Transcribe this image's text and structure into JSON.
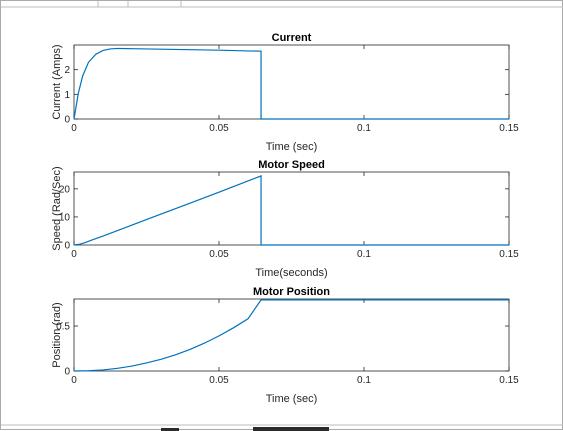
{
  "chart_data": [
    {
      "type": "line",
      "title": "Current",
      "xlabel": "Time (sec)",
      "ylabel": "Current (Amps)",
      "xlim": [
        0,
        0.15
      ],
      "ylim": [
        0,
        3
      ],
      "xticks": [
        0,
        0.05,
        0.1,
        0.15
      ],
      "xtick_labels": [
        "0",
        "0.05",
        "0.1",
        "0.15"
      ],
      "yticks": [
        0,
        1,
        2
      ],
      "ytick_labels": [
        "0",
        "1",
        "2"
      ],
      "grid": false,
      "series": [
        {
          "color": "#0072bd",
          "x": [
            0,
            0.0015,
            0.003,
            0.005,
            0.0075,
            0.01,
            0.0125,
            0.015,
            0.02,
            0.03,
            0.04,
            0.05,
            0.06,
            0.0645,
            0.0645,
            0.08,
            0.1,
            0.12,
            0.15
          ],
          "y": [
            0,
            1.05,
            1.75,
            2.3,
            2.62,
            2.78,
            2.84,
            2.86,
            2.85,
            2.83,
            2.81,
            2.79,
            2.76,
            2.75,
            0,
            0,
            0,
            0,
            0
          ]
        }
      ]
    },
    {
      "type": "line",
      "title": "Motor Speed",
      "xlabel": "Time(seconds)",
      "ylabel": "Speed (Rad/Sec)",
      "xlim": [
        0,
        0.15
      ],
      "ylim": [
        0,
        26
      ],
      "xticks": [
        0,
        0.05,
        0.1,
        0.15
      ],
      "xtick_labels": [
        "0",
        "0.05",
        "0.1",
        "0.15"
      ],
      "yticks": [
        0,
        10,
        20
      ],
      "ytick_labels": [
        "0",
        "10",
        "20"
      ],
      "grid": false,
      "series": [
        {
          "color": "#0072bd",
          "x": [
            0,
            0.002,
            0.004,
            0.006,
            0.01,
            0.02,
            0.03,
            0.04,
            0.05,
            0.06,
            0.0645,
            0.0645,
            0.08,
            0.1,
            0.12,
            0.15
          ],
          "y": [
            0,
            0.3,
            0.9,
            1.7,
            3.2,
            7.1,
            11.0,
            14.9,
            18.8,
            22.8,
            24.6,
            0,
            0,
            0,
            0,
            0
          ]
        }
      ]
    },
    {
      "type": "line",
      "title": "Motor Position",
      "xlabel": "Time (sec)",
      "ylabel": "Position (rad)",
      "xlim": [
        0,
        0.15
      ],
      "ylim": [
        0,
        0.8
      ],
      "xticks": [
        0,
        0.05,
        0.1,
        0.15
      ],
      "xtick_labels": [
        "0",
        "0.05",
        "0.1",
        "0.15"
      ],
      "yticks": [
        0,
        0.5
      ],
      "ytick_labels": [
        "0",
        "0.5"
      ],
      "grid": false,
      "series": [
        {
          "color": "#0072bd",
          "x": [
            0,
            0.005,
            0.01,
            0.015,
            0.02,
            0.025,
            0.03,
            0.035,
            0.04,
            0.045,
            0.05,
            0.055,
            0.06,
            0.0645,
            0.08,
            0.1,
            0.12,
            0.15
          ],
          "y": [
            0,
            0.003,
            0.012,
            0.03,
            0.055,
            0.09,
            0.13,
            0.18,
            0.24,
            0.31,
            0.39,
            0.48,
            0.58,
            0.79,
            0.79,
            0.79,
            0.79,
            0.79
          ]
        }
      ]
    }
  ]
}
